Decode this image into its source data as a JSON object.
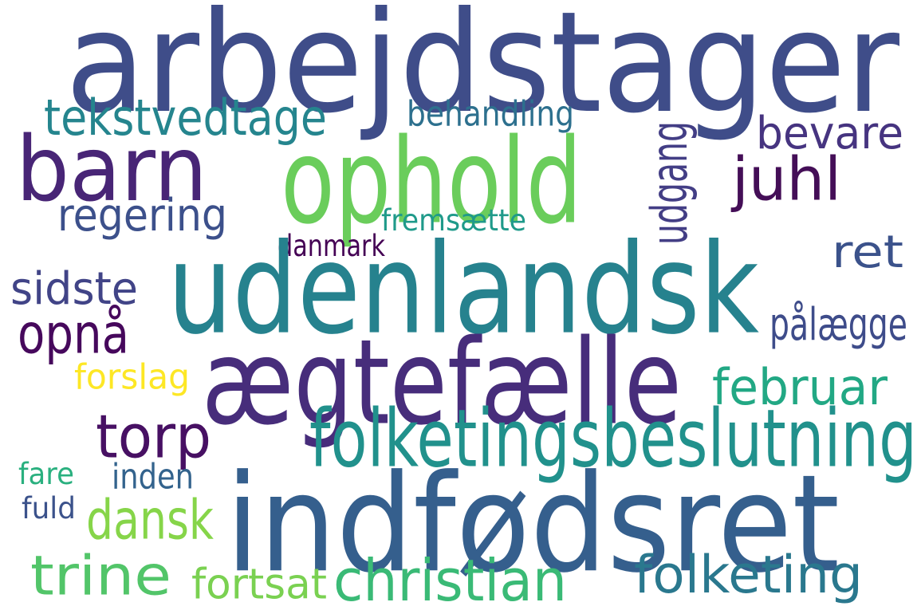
{
  "words": [
    {
      "id": "arbejdstager",
      "text": "arbejdstager",
      "color": "#3f4d89"
    },
    {
      "id": "barn",
      "text": "barn",
      "color": "#482576"
    },
    {
      "id": "ophold",
      "text": "ophold",
      "color": "#6acd5b"
    },
    {
      "id": "tekstvedtage",
      "text": "tekstvedtage",
      "color": "#25858e"
    },
    {
      "id": "behandling",
      "text": "behandling",
      "color": "#2d708e"
    },
    {
      "id": "bevare",
      "text": "bevare",
      "color": "#463480"
    },
    {
      "id": "juhl",
      "text": "juhl",
      "color": "#440e57"
    },
    {
      "id": "udgang",
      "text": "udgang",
      "color": "#433e85"
    },
    {
      "id": "regering",
      "text": "regering",
      "color": "#3c508b"
    },
    {
      "id": "fremsaette",
      "text": "fremsætte",
      "color": "#1f9a8a"
    },
    {
      "id": "danmark",
      "text": "danmark",
      "color": "#440154"
    },
    {
      "id": "ret",
      "text": "ret",
      "color": "#3b528b"
    },
    {
      "id": "udenlandsk",
      "text": "udenlandsk",
      "color": "#26828e"
    },
    {
      "id": "sidste",
      "text": "sidste",
      "color": "#414487"
    },
    {
      "id": "opna",
      "text": "opnå",
      "color": "#46085c"
    },
    {
      "id": "palaegge",
      "text": "pålægge",
      "color": "#3e4c8a"
    },
    {
      "id": "aegtefaelle",
      "text": "ægtefælle",
      "color": "#472d7b"
    },
    {
      "id": "forslag",
      "text": "forslag",
      "color": "#fde725"
    },
    {
      "id": "februar",
      "text": "februar",
      "color": "#22a884"
    },
    {
      "id": "torp",
      "text": "torp",
      "color": "#471063"
    },
    {
      "id": "folketingsbeslutning",
      "text": "folketingsbeslutning",
      "color": "#21918c"
    },
    {
      "id": "fare",
      "text": "fare",
      "color": "#2ab07f"
    },
    {
      "id": "inden",
      "text": "inden",
      "color": "#33638d"
    },
    {
      "id": "fuld",
      "text": "fuld",
      "color": "#3b528b"
    },
    {
      "id": "dansk",
      "text": "dansk",
      "color": "#86d549"
    },
    {
      "id": "indfoedsret",
      "text": "indfødsret",
      "color": "#355f8d"
    },
    {
      "id": "trine",
      "text": "trine",
      "color": "#52c569"
    },
    {
      "id": "fortsat",
      "text": "fortsat",
      "color": "#7ad151"
    },
    {
      "id": "christian",
      "text": "christian",
      "color": "#3aba76"
    },
    {
      "id": "folketing",
      "text": "folketing",
      "color": "#2a788e"
    }
  ]
}
